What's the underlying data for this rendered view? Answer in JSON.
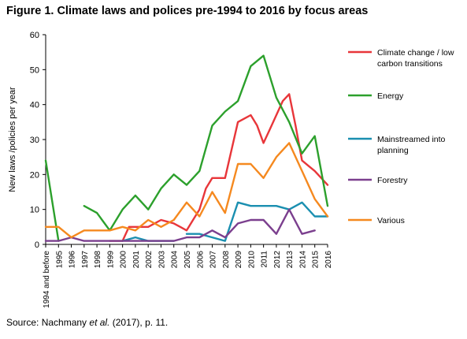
{
  "figure": {
    "title": "Figure 1. Climate laws and polices pre-1994 to 2016 by focus areas",
    "source_prefix": "Source: Nachmany ",
    "source_italic": "et al.",
    "source_suffix": " (2017), p. 11."
  },
  "chart_data": {
    "type": "line",
    "title": "Figure 1. Climate laws and polices pre-1994 to 2016 by focus areas",
    "xlabel": "",
    "ylabel": "New laws /policies per year",
    "ylim": [
      0,
      60
    ],
    "yticks": [
      0,
      10,
      20,
      30,
      40,
      50,
      60
    ],
    "grid": false,
    "legend_position": "right",
    "categories": [
      "1994 and before",
      "1995",
      "1996",
      "1997",
      "1998",
      "1999",
      "2000",
      "2001",
      "2002",
      "2003",
      "2004",
      "2005",
      "2006",
      "2007",
      "2008",
      "2009",
      "2010",
      "2011",
      "2012",
      "2013",
      "2014",
      "2015",
      "2016"
    ],
    "series": [
      {
        "name": "Climate change / low carbon transitions",
        "legend_lines": [
          "Climate change / low",
          "carbon transitions"
        ],
        "color": "#e8363a",
        "points": [
          [
            "1999",
            1
          ],
          [
            "1999.5",
            1
          ],
          [
            "2000",
            1
          ],
          [
            "2000.5",
            5
          ],
          [
            "2001",
            5
          ],
          [
            "2001.5",
            5
          ],
          [
            "2002",
            5
          ],
          [
            "2002.5",
            6
          ],
          [
            "2003",
            7
          ],
          [
            "2003.5",
            6.5
          ],
          [
            "2004",
            6
          ],
          [
            "2004.5",
            5
          ],
          [
            "2005",
            4
          ],
          [
            "2005.5",
            7
          ],
          [
            "2006",
            10
          ],
          [
            "2006.5",
            16
          ],
          [
            "2007",
            19
          ],
          [
            "2008",
            19
          ],
          [
            "2009",
            35
          ],
          [
            "2009.5",
            36
          ],
          [
            "2010",
            37
          ],
          [
            "2010.5",
            34
          ],
          [
            "2011",
            29
          ],
          [
            "2011.5",
            33
          ],
          [
            "2012",
            37
          ],
          [
            "2012.5",
            41
          ],
          [
            "2013",
            43
          ],
          [
            "2013.5",
            34
          ],
          [
            "2014",
            24
          ],
          [
            "2014.5",
            22.5
          ],
          [
            "2015",
            21
          ],
          [
            "2016",
            17
          ]
        ]
      },
      {
        "name": "Energy",
        "legend_lines": [
          "Energy"
        ],
        "color": "#2ca02c",
        "points": [
          [
            "1994 and before",
            24
          ],
          [
            "1995",
            1
          ]
        ],
        "points2": [
          [
            "1997",
            11
          ],
          [
            "1998",
            9
          ],
          [
            "1999",
            4
          ],
          [
            "2000",
            10
          ],
          [
            "2001",
            14
          ],
          [
            "2002",
            10
          ],
          [
            "2003",
            16
          ],
          [
            "2004",
            20
          ],
          [
            "2005",
            17
          ],
          [
            "2006",
            21
          ],
          [
            "2007",
            34
          ],
          [
            "2008",
            38
          ],
          [
            "2009",
            41
          ],
          [
            "2010",
            51
          ],
          [
            "2011",
            54
          ],
          [
            "2012",
            42
          ],
          [
            "2013",
            35
          ],
          [
            "2014",
            26
          ],
          [
            "2015",
            31
          ],
          [
            "2016",
            11
          ]
        ]
      },
      {
        "name": "Mainstreamed into planning",
        "legend_lines": [
          "Mainstreamed into",
          "planning"
        ],
        "color": "#1a8fb0",
        "points": [
          [
            "2000",
            1
          ],
          [
            "2001",
            2
          ],
          [
            "2002",
            1
          ],
          [
            "2003",
            1
          ],
          [
            "2004",
            1
          ]
        ],
        "points2": [
          [
            "2005",
            3
          ],
          [
            "2006",
            3
          ],
          [
            "2007",
            2
          ],
          [
            "2008",
            1
          ],
          [
            "2009",
            12
          ],
          [
            "2010",
            11
          ],
          [
            "2011",
            11
          ],
          [
            "2012",
            11
          ],
          [
            "2013",
            10
          ],
          [
            "2014",
            12
          ],
          [
            "2015",
            8
          ],
          [
            "2016",
            8
          ]
        ]
      },
      {
        "name": "Forestry",
        "legend_lines": [
          "Forestry"
        ],
        "color": "#7b3f8e",
        "points": [
          [
            "1994 and before",
            1
          ],
          [
            "1995",
            1
          ],
          [
            "1996",
            2
          ],
          [
            "1997",
            1
          ],
          [
            "1998",
            1
          ],
          [
            "1999",
            1
          ],
          [
            "2000",
            1
          ],
          [
            "2001",
            1
          ],
          [
            "2002",
            1
          ],
          [
            "2003",
            1
          ],
          [
            "2004",
            1
          ],
          [
            "2005",
            2
          ],
          [
            "2006",
            2
          ],
          [
            "2007",
            4
          ],
          [
            "2008",
            2
          ],
          [
            "2009",
            6
          ],
          [
            "2010",
            7
          ],
          [
            "2011",
            7
          ],
          [
            "2012",
            3
          ],
          [
            "2013",
            10
          ],
          [
            "2014",
            3
          ],
          [
            "2015",
            4
          ]
        ]
      },
      {
        "name": "Various",
        "legend_lines": [
          "Various"
        ],
        "color": "#f5891f",
        "points": [
          [
            "1994 and before",
            5
          ],
          [
            "1995",
            5
          ],
          [
            "1996",
            2
          ],
          [
            "1997",
            4
          ],
          [
            "1998",
            4
          ],
          [
            "1999",
            4
          ],
          [
            "2000",
            5
          ],
          [
            "2001",
            4
          ],
          [
            "2002",
            7
          ],
          [
            "2003",
            5
          ],
          [
            "2004",
            7
          ],
          [
            "2005",
            12
          ],
          [
            "2006",
            8
          ],
          [
            "2007",
            15
          ],
          [
            "2008",
            9
          ],
          [
            "2009",
            23
          ],
          [
            "2010",
            23
          ],
          [
            "2011",
            19
          ],
          [
            "2012",
            25
          ],
          [
            "2013",
            29
          ],
          [
            "2014",
            21
          ],
          [
            "2015",
            13
          ],
          [
            "2016",
            8
          ]
        ]
      }
    ]
  }
}
